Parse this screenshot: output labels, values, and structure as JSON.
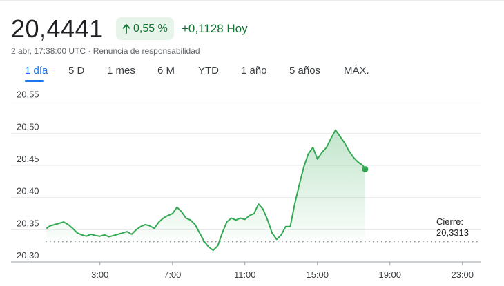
{
  "quote": {
    "price": "20,4441",
    "change_percent": "0,55 %",
    "change_abs": "+0,1128 Hoy",
    "timestamp": "2 abr, 17:38:00 UTC",
    "separator": "·",
    "disclaimer": "Renuncia de responsabilidad",
    "accent_color": "#137333",
    "chip_bg": "#e6f4ea",
    "arrow_icon": "arrow-up-icon"
  },
  "tabs": [
    {
      "label": "1 día",
      "active": true
    },
    {
      "label": "5 D",
      "active": false
    },
    {
      "label": "1 mes",
      "active": false
    },
    {
      "label": "6 M",
      "active": false
    },
    {
      "label": "YTD",
      "active": false
    },
    {
      "label": "1 año",
      "active": false
    },
    {
      "label": "5 años",
      "active": false
    },
    {
      "label": "MÁX.",
      "active": false
    }
  ],
  "close": {
    "label": "Cierre:",
    "value": "20,3313"
  },
  "chart_data": {
    "type": "line",
    "x_unit": "hours UTC",
    "y_ticks": [
      "20,55",
      "20,50",
      "20,45",
      "20,40",
      "20,35",
      "20,30"
    ],
    "y_tick_values": [
      20.55,
      20.5,
      20.45,
      20.4,
      20.35,
      20.3
    ],
    "x_ticks": [
      "3:00",
      "7:00",
      "11:00",
      "15:00",
      "19:00",
      "23:00"
    ],
    "x_tick_values": [
      3,
      7,
      11,
      15,
      19,
      23
    ],
    "xlim": [
      0,
      24
    ],
    "ylim": [
      20.3,
      20.555
    ],
    "previous_close": 20.3313,
    "line_color": "#34a853",
    "fill_color": "#34a853",
    "series": [
      {
        "x": [
          0.05,
          0.25,
          0.5,
          0.75,
          1.0,
          1.25,
          1.5,
          1.75,
          2.0,
          2.25,
          2.5,
          2.75,
          3.0,
          3.25,
          3.5,
          3.75,
          4.0,
          4.25,
          4.5,
          4.75,
          5.0,
          5.25,
          5.5,
          5.75,
          6.0,
          6.25,
          6.5,
          6.75,
          7.0,
          7.25,
          7.5,
          7.75,
          8.0,
          8.25,
          8.5,
          8.75,
          9.0,
          9.25,
          9.5,
          9.75,
          10.0,
          10.25,
          10.5,
          10.75,
          11.0,
          11.25,
          11.5,
          11.75,
          12.0,
          12.25,
          12.5,
          12.75,
          13.0,
          13.25,
          13.5,
          13.75,
          14.0,
          14.25,
          14.5,
          14.75,
          15.0,
          15.25,
          15.5,
          15.75,
          16.0,
          16.25,
          16.5,
          16.75,
          17.0,
          17.25,
          17.5,
          17.63
        ],
        "y": [
          20.352,
          20.356,
          20.358,
          20.36,
          20.362,
          20.358,
          20.352,
          20.345,
          20.342,
          20.34,
          20.343,
          20.341,
          20.34,
          20.342,
          20.339,
          20.341,
          20.343,
          20.345,
          20.347,
          20.343,
          20.35,
          20.355,
          20.358,
          20.356,
          20.352,
          20.362,
          20.368,
          20.372,
          20.375,
          20.385,
          20.378,
          20.368,
          20.365,
          20.358,
          20.345,
          20.332,
          20.323,
          20.318,
          20.325,
          20.345,
          20.362,
          20.368,
          20.365,
          20.368,
          20.366,
          20.372,
          20.375,
          20.39,
          20.382,
          20.365,
          20.345,
          20.335,
          20.342,
          20.355,
          20.355,
          20.39,
          20.42,
          20.448,
          20.468,
          20.478,
          20.46,
          20.47,
          20.478,
          20.492,
          20.505,
          20.495,
          20.485,
          20.472,
          20.462,
          20.455,
          20.45,
          20.4441
        ]
      }
    ]
  }
}
